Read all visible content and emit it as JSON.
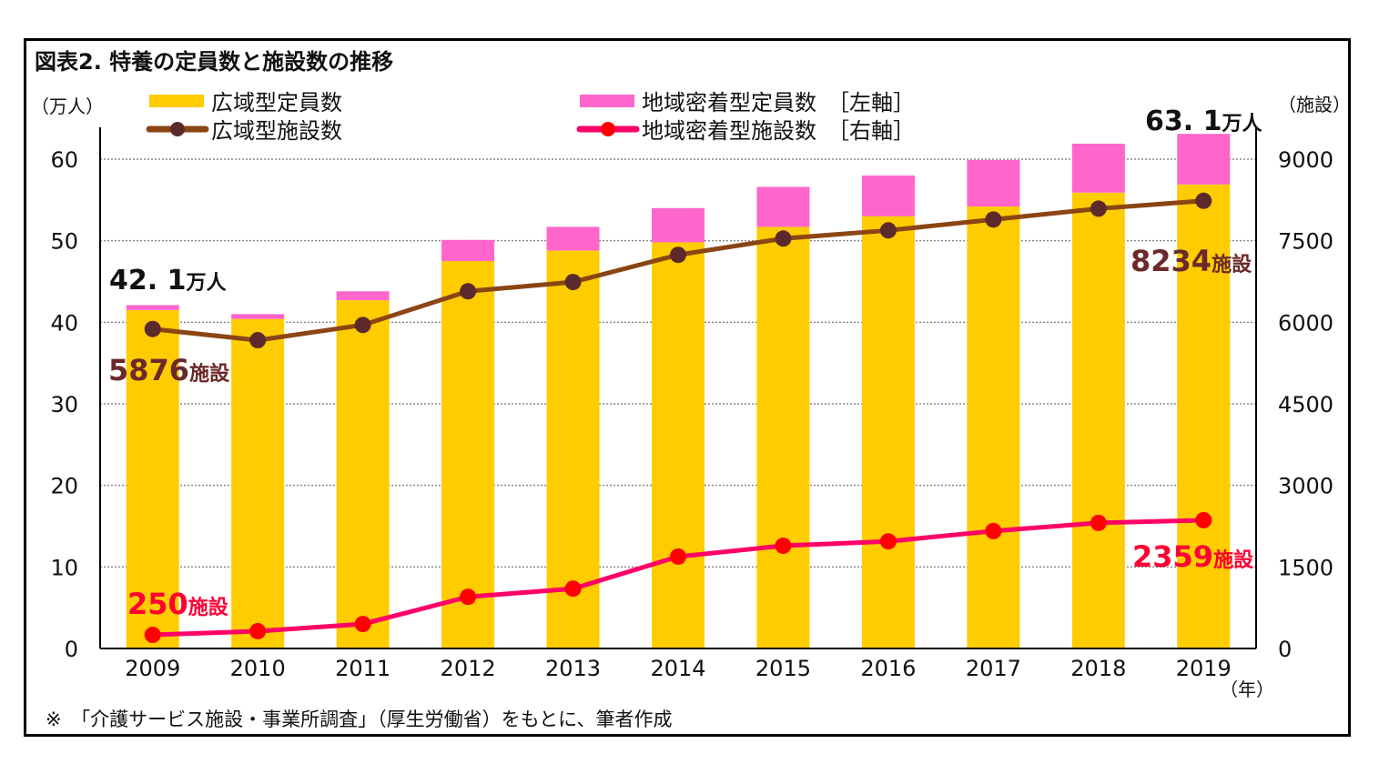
{
  "chart_data": {
    "type": "bar",
    "title": "図表2.  特養の定員数と施設数の推移",
    "left_axis_label": "（万人）",
    "right_axis_label": "（施設）",
    "x_unit_label": "（年）",
    "categories": [
      "2009",
      "2010",
      "2011",
      "2012",
      "2013",
      "2014",
      "2015",
      "2016",
      "2017",
      "2018",
      "2019"
    ],
    "left_ylim": [
      0,
      60
    ],
    "left_ticks": [
      "0",
      "10",
      "20",
      "30",
      "40",
      "50",
      "60"
    ],
    "right_ylim": [
      0,
      9000
    ],
    "right_ticks": [
      "0",
      "1500",
      "3000",
      "4500",
      "6000",
      "7500",
      "9000"
    ],
    "grid": true,
    "legend_placement": "top",
    "series": [
      {
        "name": "広域型定員数",
        "kind": "bar",
        "axis": "left",
        "color": "#FFCC00",
        "values": [
          41.5,
          40.4,
          42.7,
          47.5,
          48.8,
          49.8,
          51.7,
          53.0,
          54.2,
          55.9,
          56.9
        ]
      },
      {
        "name": "地域密着型定員数　［左軸］",
        "kind": "bar-stacked",
        "axis": "left",
        "color": "#FF66CC",
        "values": [
          0.6,
          0.6,
          1.1,
          2.6,
          2.9,
          4.2,
          4.9,
          5.0,
          5.7,
          6.0,
          6.2
        ]
      },
      {
        "name": "広域型施設数",
        "kind": "line",
        "axis": "right",
        "color": "#8B4513",
        "marker_color": "#5C2A2A",
        "values": [
          5876,
          5670,
          5950,
          6570,
          6740,
          7240,
          7540,
          7690,
          7890,
          8090,
          8234
        ]
      },
      {
        "name": "地域密着型施設数　［右軸］",
        "kind": "line",
        "axis": "right",
        "color": "#FF0066",
        "marker_color": "#FF0000",
        "values": [
          250,
          318,
          450,
          950,
          1100,
          1690,
          1890,
          1970,
          2160,
          2310,
          2359
        ]
      }
    ],
    "annotations": {
      "total_2009": {
        "num": "42. 1",
        "unit": "万人"
      },
      "total_2019": {
        "num": "63. 1",
        "unit": "万人"
      },
      "wide_2009": {
        "num": "5876",
        "unit": "施設"
      },
      "wide_2019": {
        "num": "8234",
        "unit": "施設"
      },
      "local_2009": {
        "num": "250",
        "unit": "施設"
      },
      "local_2019": {
        "num": "2359",
        "unit": "施設"
      }
    },
    "footnote": "※　「介護サービス施設・事業所調査」（厚生労働省）をもとに、筆者作成"
  }
}
